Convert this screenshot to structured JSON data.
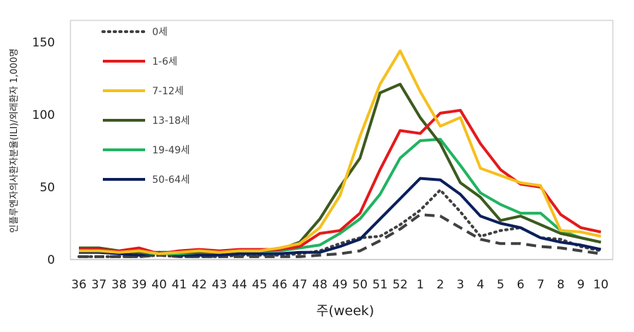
{
  "chart_data": {
    "type": "line",
    "title": "",
    "xlabel": "주(week)",
    "ylabel": "인플루엔자의사환자분율(ILI)/외래환자 1,000명",
    "ylim": [
      0,
      165
    ],
    "yticks": [
      "0",
      "50",
      "100",
      "150"
    ],
    "categories": [
      "36",
      "37",
      "38",
      "39",
      "40",
      "41",
      "42",
      "43",
      "44",
      "45",
      "46",
      "47",
      "48",
      "49",
      "50",
      "51",
      "52",
      "1",
      "2",
      "3",
      "4",
      "5",
      "6",
      "7",
      "8",
      "9",
      "10"
    ],
    "legend_position": "top-left",
    "series": [
      {
        "name": "0세",
        "color": "#404040",
        "dash": "dotted",
        "values": [
          2,
          2,
          2,
          2,
          3,
          2,
          2,
          2,
          3,
          3,
          3,
          4,
          6,
          11,
          15,
          16,
          24,
          34,
          48,
          33,
          16,
          20,
          22,
          15,
          14,
          9,
          6
        ]
      },
      {
        "name": "1-6세",
        "color": "#e41a1c",
        "dash": "solid",
        "values": [
          7,
          7,
          6,
          8,
          4,
          6,
          7,
          6,
          7,
          7,
          7,
          9,
          18,
          20,
          32,
          62,
          89,
          87,
          101,
          103,
          80,
          62,
          52,
          50,
          31,
          22,
          19
        ]
      },
      {
        "name": "7-12세",
        "color": "#f5c01e",
        "dash": "solid",
        "values": [
          6,
          6,
          5,
          6,
          4,
          5,
          6,
          5,
          6,
          6,
          8,
          11,
          22,
          44,
          85,
          121,
          144,
          116,
          92,
          98,
          63,
          58,
          53,
          51,
          20,
          19,
          16
        ]
      },
      {
        "name": "13-18세",
        "color": "#3d5a1e",
        "dash": "solid",
        "values": [
          8,
          8,
          6,
          5,
          5,
          5,
          5,
          5,
          6,
          6,
          7,
          12,
          28,
          50,
          70,
          115,
          121,
          98,
          80,
          53,
          43,
          27,
          30,
          24,
          18,
          15,
          12
        ]
      },
      {
        "name": "19-49세",
        "color": "#22b361",
        "dash": "solid",
        "values": [
          7,
          6,
          6,
          5,
          4,
          4,
          5,
          5,
          6,
          6,
          6,
          8,
          10,
          18,
          28,
          45,
          70,
          82,
          83,
          65,
          46,
          38,
          32,
          32,
          20,
          15,
          12
        ]
      },
      {
        "name": "50-64세",
        "color": "#0b1f5c",
        "dash": "solid",
        "values": [
          5,
          5,
          4,
          3,
          5,
          3,
          3,
          3,
          4,
          4,
          4,
          5,
          5,
          9,
          14,
          28,
          42,
          56,
          55,
          45,
          30,
          25,
          22,
          15,
          12,
          10,
          7
        ]
      },
      {
        "name": "",
        "color": "#404040",
        "dash": "dashed",
        "values": [
          2,
          2,
          2,
          2,
          3,
          2,
          2,
          2,
          2,
          2,
          2,
          2,
          3,
          4,
          6,
          13,
          21,
          31,
          30,
          22,
          14,
          11,
          11,
          9,
          8,
          6,
          4
        ]
      }
    ]
  }
}
